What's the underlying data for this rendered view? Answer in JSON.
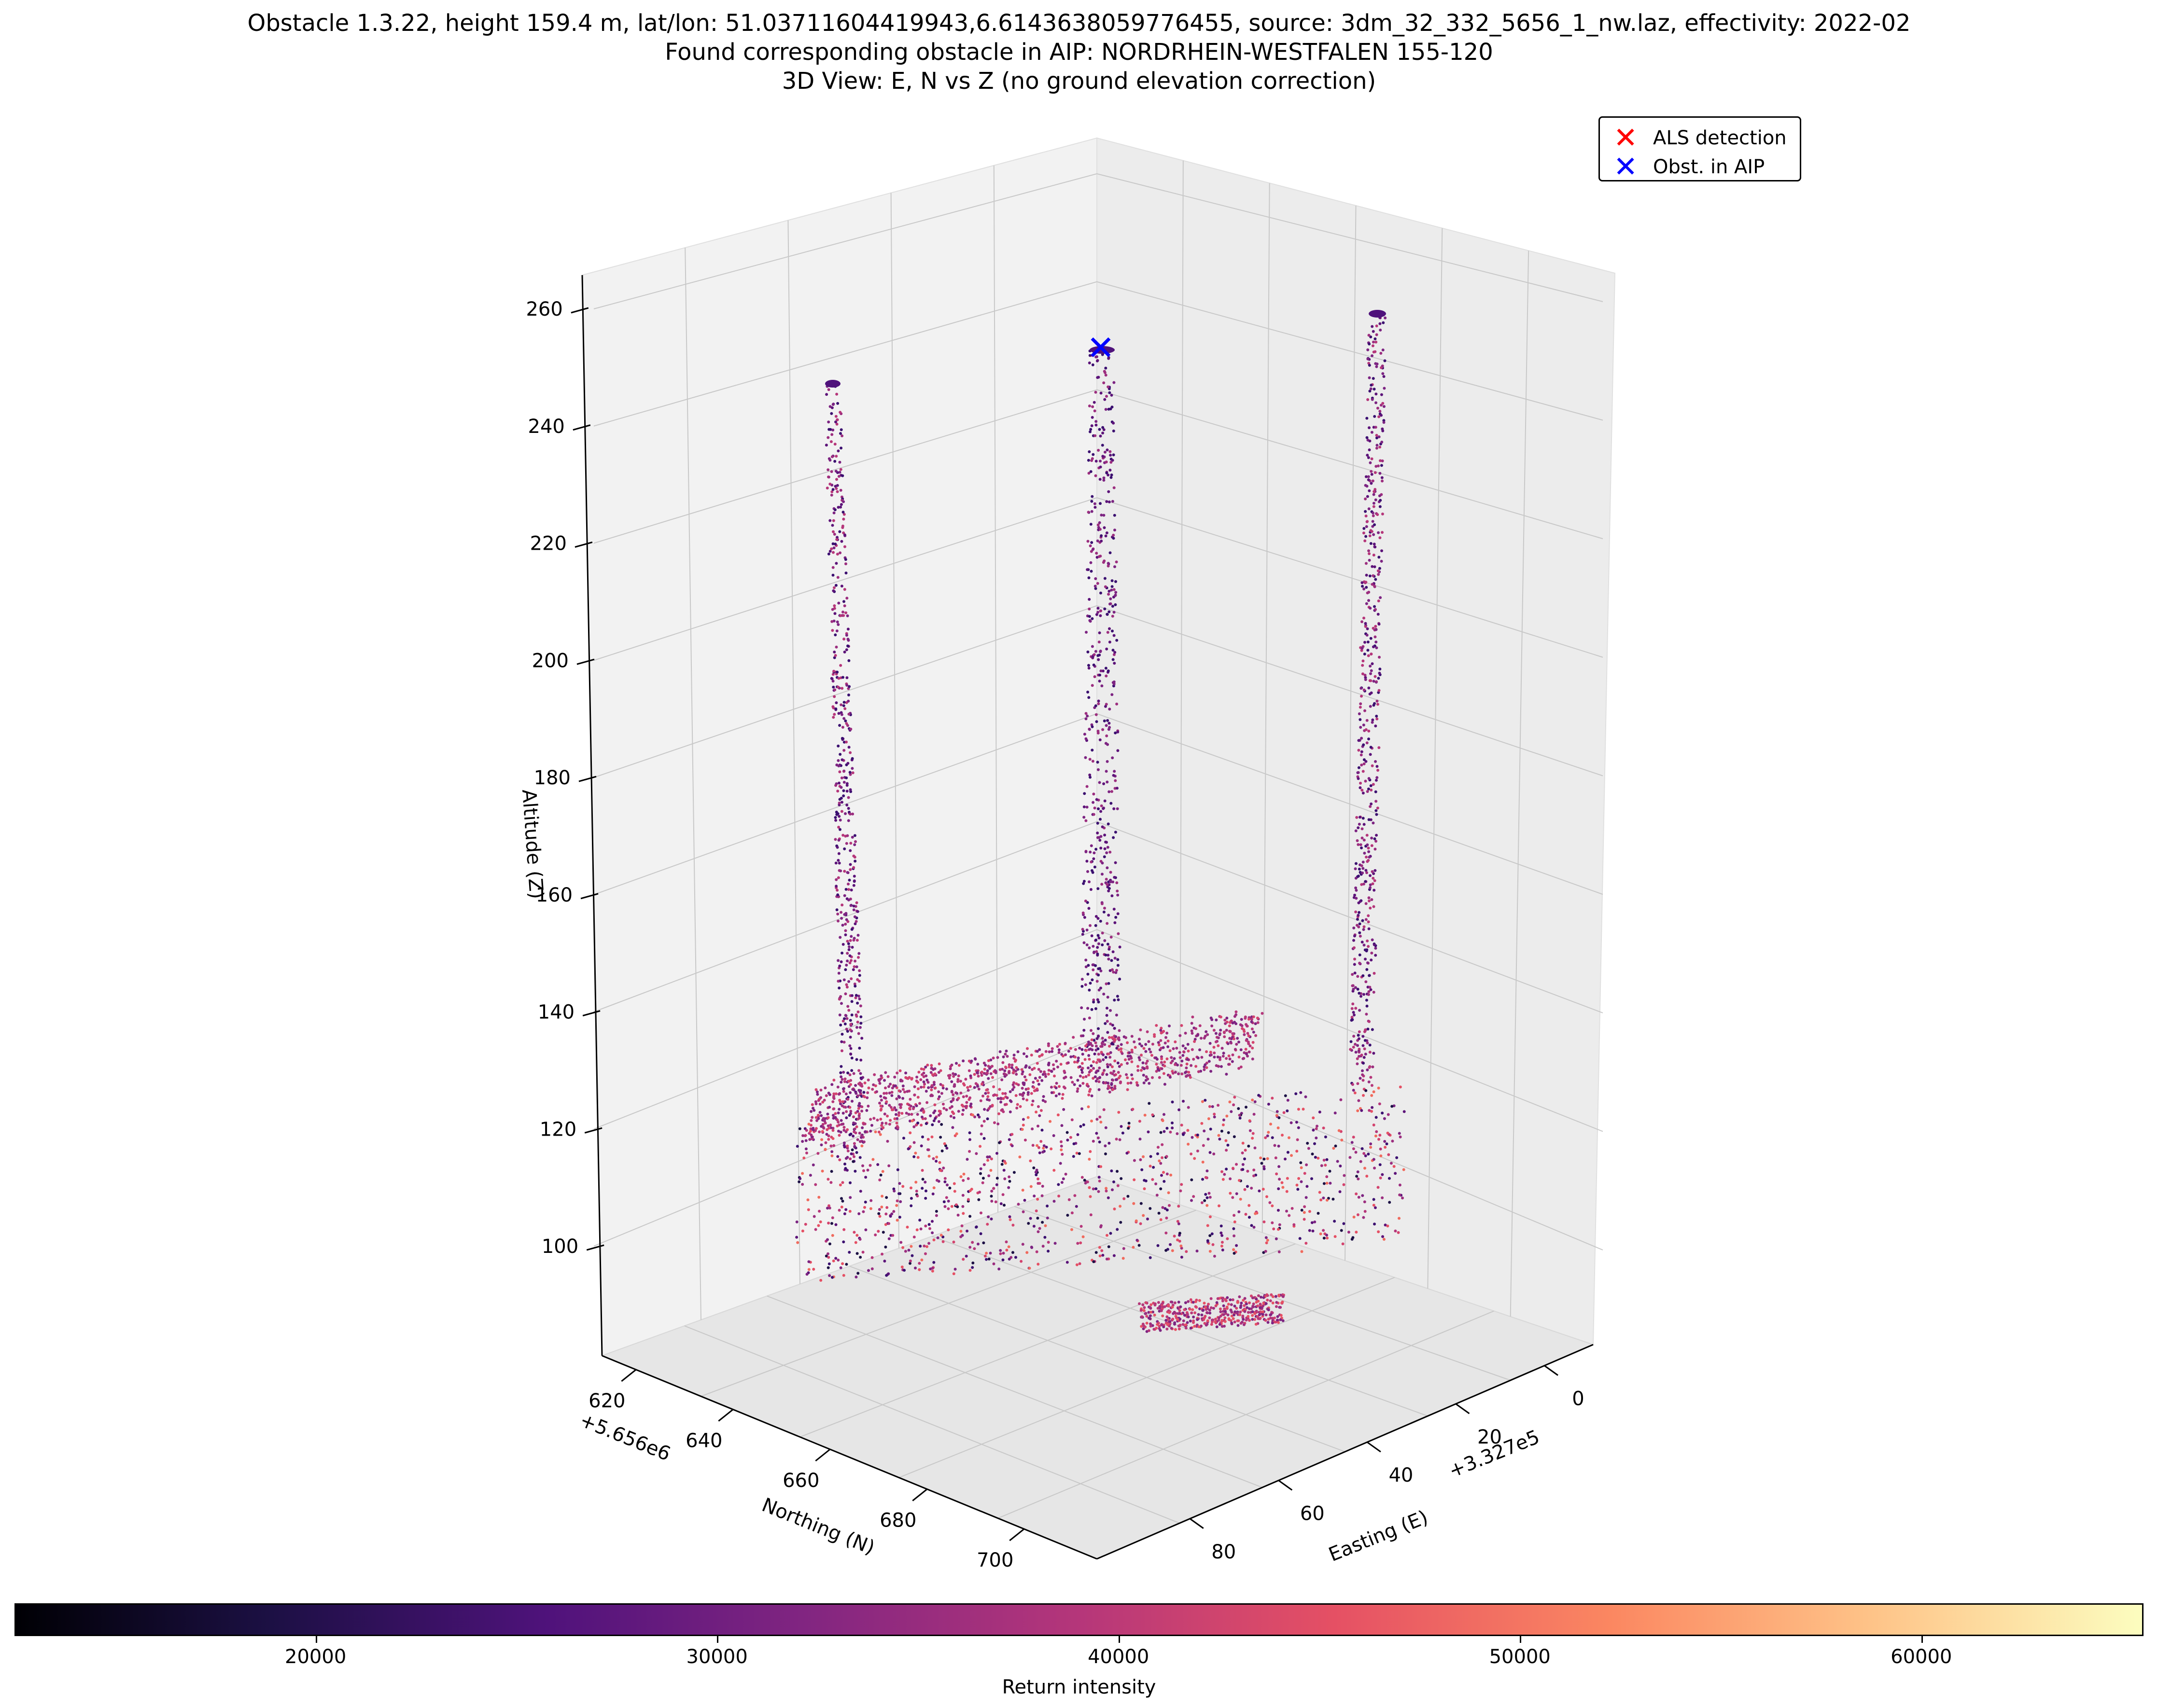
{
  "titles": {
    "line1": "Obstacle 1.3.22, height 159.4 m, lat/lon: 51.03711604419943,6.6143638059776455, source: 3dm_32_332_5656_1_nw.laz, effectivity: 2022-02",
    "line2": "Found corresponding obstacle in AIP: NORDRHEIN-WESTFALEN 155-120",
    "line3": "3D View: E, N vs Z (no ground elevation correction)"
  },
  "legend": {
    "als": "ALS detection",
    "aip": "Obst. in AIP",
    "als_color": "#ff0000",
    "aip_color": "#0000ff"
  },
  "chart_data": {
    "type": "scatter",
    "projection": "3d",
    "zlabel": "Altitude (Z)",
    "ylabel": "Northing (N)",
    "xlabel": "Easting (E)",
    "x_offset": "+3.327e5",
    "y_offset": "+5.656e6",
    "x_ticks": [
      "0",
      "20",
      "40",
      "60",
      "80"
    ],
    "y_ticks": [
      "620",
      "640",
      "660",
      "680",
      "700"
    ],
    "z_ticks": [
      "100",
      "120",
      "140",
      "160",
      "180",
      "200",
      "220",
      "240",
      "260"
    ],
    "colorbar": {
      "label": "Return intensity",
      "ticks": [
        "20000",
        "30000",
        "40000",
        "50000",
        "60000"
      ],
      "range": [
        12500,
        65535
      ],
      "colormap": "magma"
    },
    "structures": [
      {
        "name": "left-pylon",
        "top_z": 246
      },
      {
        "name": "center-stack",
        "top_z": 253
      },
      {
        "name": "right-pylon",
        "top_z": 259
      }
    ],
    "markers": [
      {
        "series": "Obst. in AIP",
        "z": 254
      }
    ]
  }
}
